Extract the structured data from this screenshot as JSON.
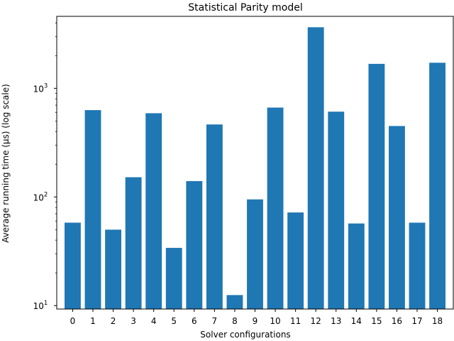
{
  "chart_data": {
    "type": "bar",
    "title": "Statistical Parity model",
    "xlabel": "Solver configurations",
    "ylabel": "Average running time (μs) (log scale)",
    "yscale": "log",
    "ylim": [
      9.3,
      4600
    ],
    "categories": [
      "0",
      "1",
      "2",
      "3",
      "4",
      "5",
      "6",
      "7",
      "8",
      "9",
      "10",
      "11",
      "12",
      "13",
      "14",
      "15",
      "16",
      "17",
      "18"
    ],
    "values": [
      58,
      630,
      50,
      152,
      590,
      34,
      140,
      465,
      12.5,
      95,
      665,
      72,
      3650,
      610,
      57,
      1680,
      450,
      58,
      1720
    ],
    "y_ticks": [
      {
        "value": 10,
        "base": "10",
        "exp": "1"
      },
      {
        "value": 100,
        "base": "10",
        "exp": "2"
      },
      {
        "value": 1000,
        "base": "10",
        "exp": "3"
      }
    ],
    "bar_color": "#1f77b4",
    "grid": false,
    "legend": "none"
  }
}
